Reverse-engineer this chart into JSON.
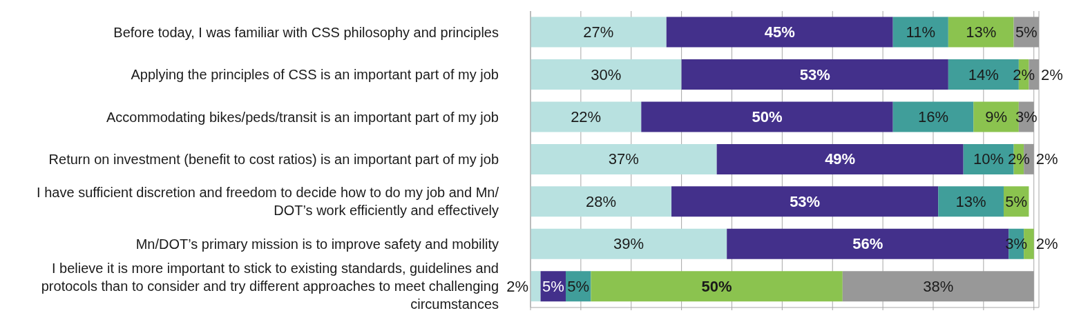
{
  "chart_data": {
    "type": "bar",
    "orientation": "horizontal",
    "stacked": true,
    "categories": [
      "Before today, I was familiar with CSS philosophy and principles",
      "Applying the principles of CSS is an important part of my job",
      "Accommodating bikes/peds/transit is an important part of my job",
      "Return on investment (benefit to cost ratios) is an important part of my job",
      "I have sufficient discretion and freedom to decide how to do my job and Mn/DOT’s work efficiently and effectively",
      "Mn/DOT’s primary mission is to improve safety and mobility",
      "I believe it is more important to stick to existing standards, guidelines and protocols than to consider and try different approaches to meet challenging circumstances"
    ],
    "series": [
      {
        "color": "#b8e1e0",
        "values": [
          27,
          30,
          22,
          37,
          28,
          39,
          2
        ],
        "value_labels": [
          "27%",
          "30%",
          "22%",
          "37%",
          "28%",
          "39%",
          "2%"
        ]
      },
      {
        "color": "#43308b",
        "values": [
          45,
          53,
          50,
          49,
          53,
          56,
          5
        ],
        "value_labels": [
          "45%",
          "53%",
          "50%",
          "49%",
          "53%",
          "56%",
          "5%"
        ]
      },
      {
        "color": "#409e9a",
        "values": [
          11,
          14,
          16,
          10,
          13,
          3,
          5
        ],
        "value_labels": [
          "11%",
          "14%",
          "16%",
          "10%",
          "13%",
          "3%",
          "5%"
        ]
      },
      {
        "color": "#8bc34f",
        "values": [
          13,
          2,
          9,
          2,
          5,
          2,
          50
        ],
        "value_labels": [
          "13%",
          "2%",
          "9%",
          "2%",
          "5%",
          "2%",
          "50%"
        ]
      },
      {
        "color": "#989898",
        "values": [
          5,
          2,
          3,
          2,
          null,
          null,
          38
        ],
        "value_labels": [
          "5%",
          "2%",
          "3%",
          "2%",
          null,
          null,
          "38%"
        ]
      }
    ],
    "xlim": [
      0,
      101
    ],
    "xticks": [
      {
        "value": 0,
        "label": null
      },
      {
        "value": 10,
        "label": null
      },
      {
        "value": 20,
        "label": null
      },
      {
        "value": 30,
        "label": null
      },
      {
        "value": 40,
        "label": null
      },
      {
        "value": 50,
        "label": null
      },
      {
        "value": 60,
        "label": null
      },
      {
        "value": 70,
        "label": null
      },
      {
        "value": 80,
        "label": null
      },
      {
        "value": 90,
        "label": null
      },
      {
        "value": 100,
        "label": null
      }
    ],
    "grid": "x",
    "tick_labels": "y"
  }
}
